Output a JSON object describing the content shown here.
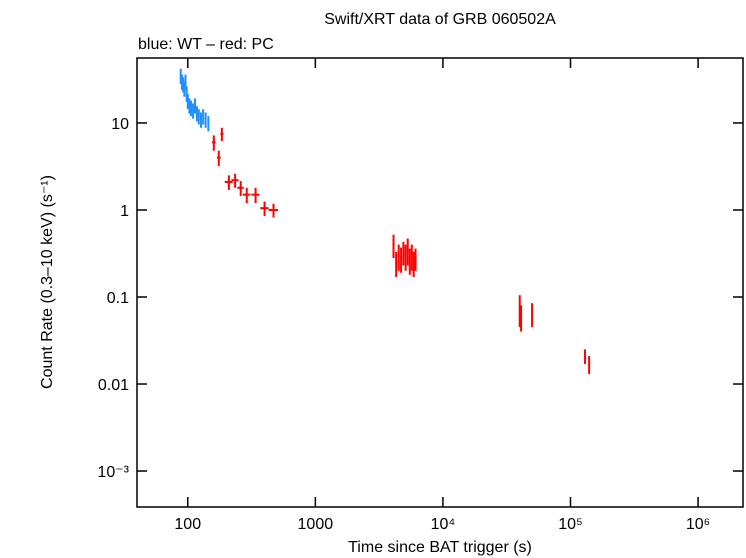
{
  "chart_data": {
    "type": "errorbar",
    "title": "Swift/XRT data of GRB 060502A",
    "subtitle": "blue: WT – red: PC",
    "x_label": "Time since BAT trigger (s)",
    "y_label": "Count Rate (0.3–10 keV) (s⁻¹)",
    "xscale": "log",
    "yscale": "log",
    "xlim": [
      40,
      2250000
    ],
    "ylim": [
      0.000386,
      55.8
    ],
    "xticks": [
      100,
      1000,
      {
        "value": 10000,
        "label": "10⁴"
      },
      {
        "value": 100000,
        "label": "10⁵"
      },
      {
        "value": 1000000,
        "label": "10⁶"
      }
    ],
    "yticks": [
      10,
      1,
      0.1,
      0.01,
      {
        "value": 0.001,
        "label": "10⁻³"
      }
    ],
    "series": [
      {
        "name": "WT",
        "color": "#1e90ff",
        "x": [
          88,
          90,
          92,
          94,
          96,
          98,
          100,
          103,
          106,
          110,
          114,
          118,
          122,
          127,
          132,
          138,
          145
        ],
        "values": [
          35,
          30,
          28,
          25,
          30,
          22,
          18,
          16,
          15,
          14,
          16,
          13,
          12,
          11,
          12,
          11,
          10
        ],
        "yerr": [
          7,
          6,
          5.5,
          5,
          6,
          4.5,
          3.5,
          3.2,
          3,
          2.8,
          3.2,
          2.6,
          2.4,
          2.2,
          2.4,
          2.2,
          2
        ]
      },
      {
        "name": "PC",
        "color": "#ff0000",
        "x": [
          160,
          175,
          185,
          210,
          235,
          260,
          290,
          340,
          400,
          470,
          4100,
          4300,
          4500,
          4700,
          4900,
          5100,
          5300,
          5500,
          5700,
          5900,
          6100,
          40000,
          41000,
          50000,
          130000,
          140000
        ],
        "values": [
          6,
          4,
          7.5,
          2.1,
          2.2,
          1.8,
          1.5,
          1.5,
          1.05,
          1.0,
          0.4,
          0.25,
          0.3,
          0.28,
          0.33,
          0.3,
          0.35,
          0.27,
          0.3,
          0.25,
          0.28,
          0.075,
          0.06,
          0.065,
          0.021,
          0.017
        ],
        "xerr": [
          5,
          6,
          5,
          15,
          15,
          15,
          20,
          25,
          30,
          40,
          80,
          80,
          80,
          80,
          80,
          80,
          80,
          80,
          80,
          80,
          80,
          400,
          400,
          500,
          1500,
          1500
        ],
        "yerr": [
          1.2,
          0.8,
          1.3,
          0.4,
          0.4,
          0.35,
          0.3,
          0.3,
          0.2,
          0.18,
          0.12,
          0.08,
          0.1,
          0.09,
          0.1,
          0.1,
          0.12,
          0.09,
          0.1,
          0.08,
          0.08,
          0.03,
          0.02,
          0.02,
          0.004,
          0.004
        ]
      }
    ]
  }
}
